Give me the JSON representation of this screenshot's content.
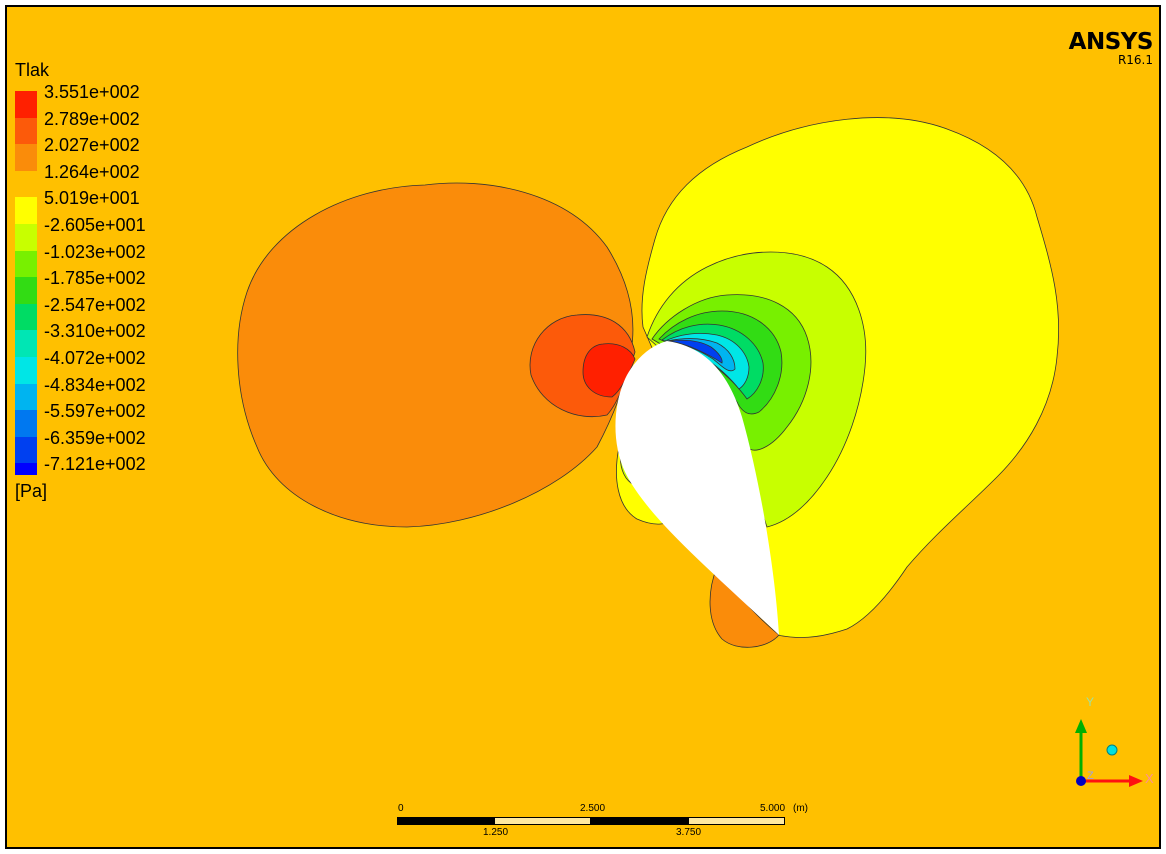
{
  "app": {
    "brand": "ANSYS",
    "version": "R16.1"
  },
  "legend": {
    "title": "Tlak",
    "unit": "[Pa]",
    "levels": [
      {
        "label": "3.551e+002",
        "color": "#ff2000"
      },
      {
        "label": "2.789e+002",
        "color": "#fc5a0a"
      },
      {
        "label": "2.027e+002",
        "color": "#fa8c0a"
      },
      {
        "label": "1.264e+002",
        "color": "#ffc000"
      },
      {
        "label": "5.019e+001",
        "color": "#ffff00"
      },
      {
        "label": "-2.605e+001",
        "color": "#c8ff00"
      },
      {
        "label": "-1.023e+002",
        "color": "#78f000"
      },
      {
        "label": "-1.785e+002",
        "color": "#32dc14"
      },
      {
        "label": "-2.547e+002",
        "color": "#00dc64"
      },
      {
        "label": "-3.310e+002",
        "color": "#00e6b4"
      },
      {
        "label": "-4.072e+002",
        "color": "#00e6e6"
      },
      {
        "label": "-4.834e+002",
        "color": "#00b4f0"
      },
      {
        "label": "-5.597e+002",
        "color": "#0078f0"
      },
      {
        "label": "-6.359e+002",
        "color": "#0040f0"
      },
      {
        "label": "-7.121e+002",
        "color": "#0000ff"
      }
    ]
  },
  "scale_bar": {
    "unit": "(m)",
    "top_ticks": [
      "0",
      "2.500",
      "5.000"
    ],
    "bottom_ticks": [
      "1.250",
      "3.750"
    ]
  },
  "triad": {
    "y_label": "Y",
    "x_label": "X",
    "z_label": "Z",
    "y_color": "#00b000",
    "x_color": "#ff1010",
    "z_color": "#0000c0",
    "sphere_color": "#00e0e0"
  },
  "field_colors": {
    "background": "#ffc000",
    "airfoil": "#ffffff"
  }
}
